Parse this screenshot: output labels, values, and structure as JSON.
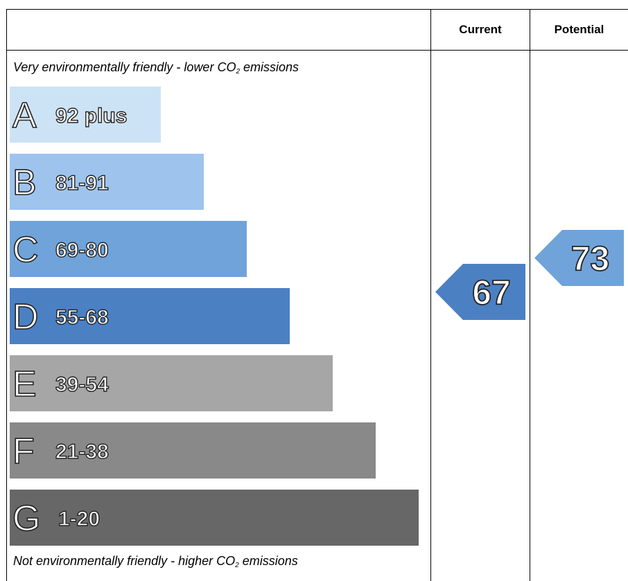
{
  "header": {
    "current_label": "Current",
    "potential_label": "Potential"
  },
  "notes": {
    "top": "Very environmentally friendly - lower CO",
    "top_suffix": " emissions",
    "bottom": "Not environmentally friendly - higher CO",
    "bottom_suffix": " emissions",
    "subscript": "2"
  },
  "chart_data": {
    "type": "bar",
    "bands": [
      {
        "letter": "A",
        "range": "92 plus",
        "color": "#cce3f5"
      },
      {
        "letter": "B",
        "range": "81-91",
        "color": "#9ec4ee"
      },
      {
        "letter": "C",
        "range": "69-80",
        "color": "#6fa3d9"
      },
      {
        "letter": "D",
        "range": "55-68",
        "color": "#4b80c3"
      },
      {
        "letter": "E",
        "range": "39-54",
        "color": "#a6a6a6"
      },
      {
        "letter": "F",
        "range": "21-38",
        "color": "#898989"
      },
      {
        "letter": "G",
        "range": "1-20",
        "color": "#676767"
      }
    ],
    "current": {
      "value": 67,
      "band": "D",
      "color": "#4b80c3"
    },
    "potential": {
      "value": 73,
      "band": "C",
      "color": "#6fa3d9"
    }
  }
}
